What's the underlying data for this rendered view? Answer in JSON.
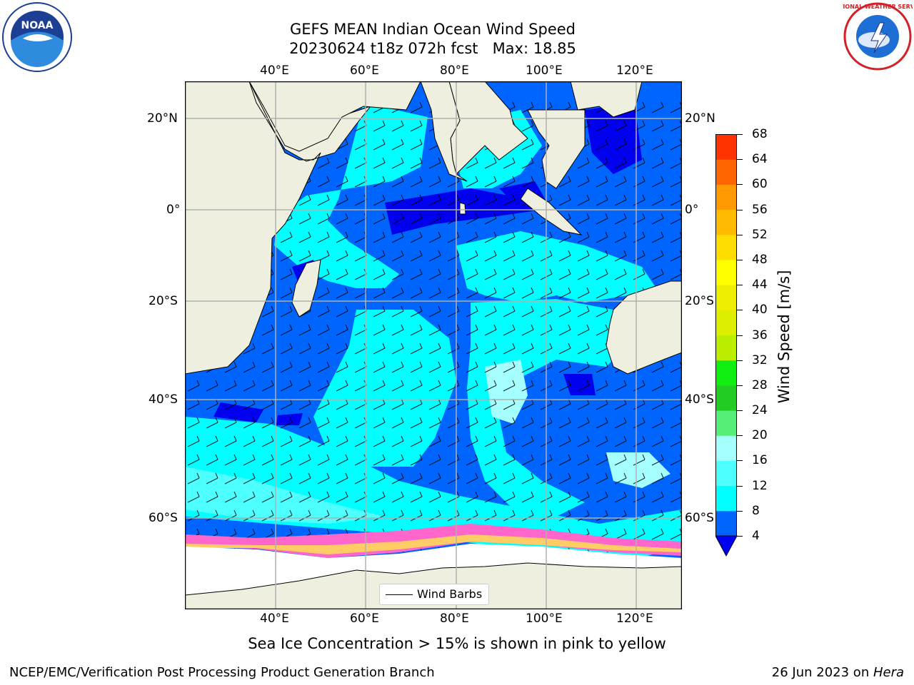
{
  "header": {
    "title_line1": "GEFS MEAN Indian Ocean Wind Speed",
    "title_line2": "20230624 t18z 072h fcst   Max: 18.85"
  },
  "logos": {
    "noaa_text": "NOAA",
    "nws_text": "NATIONAL WEATHER SERVICE"
  },
  "map": {
    "lon_ticks": [
      "40°E",
      "60°E",
      "80°E",
      "100°E",
      "120°E"
    ],
    "lat_ticks_left": [
      "20°N",
      "0°",
      "20°S",
      "40°S",
      "60°S"
    ],
    "lat_ticks_right": [
      "20°N",
      "0°",
      "20°S",
      "40°S",
      "60°S"
    ],
    "legend_label": "Wind Barbs",
    "colors": {
      "land": "#efefdf",
      "deep_blue": "#0000ee",
      "blue": "#0064ff",
      "cyan": "#00ffff",
      "light_cyan": "#4dffff",
      "pale_cyan": "#a6ffff",
      "ice_pink": "#ff66cc",
      "ice_yellow": "#ffcc66",
      "ice_white": "#ffffff",
      "grid": "#b0b0b0"
    }
  },
  "colorbar": {
    "label": "Wind Speed [m/s]",
    "ticks": [
      "4",
      "8",
      "12",
      "16",
      "20",
      "24",
      "28",
      "32",
      "36",
      "40",
      "44",
      "48",
      "52",
      "56",
      "60",
      "64",
      "68"
    ],
    "colors": [
      "#0064ff",
      "#00ffff",
      "#4dffff",
      "#a6ffff",
      "#55ee77",
      "#22cc22",
      "#11ee11",
      "#bbee00",
      "#ddee00",
      "#eeee00",
      "#ffff00",
      "#ffdd00",
      "#ffbb00",
      "#ff9900",
      "#ff6600",
      "#ff3300",
      "#ff0000"
    ],
    "under_color": "#0000ee"
  },
  "caption": "Sea Ice Concentration > 15% is shown in pink to yellow",
  "footer": {
    "left": "NCEP/EMC/Verification Post Processing Product Generation Branch",
    "right_prefix": "26 Jun 2023 on ",
    "right_host": "Hera"
  }
}
